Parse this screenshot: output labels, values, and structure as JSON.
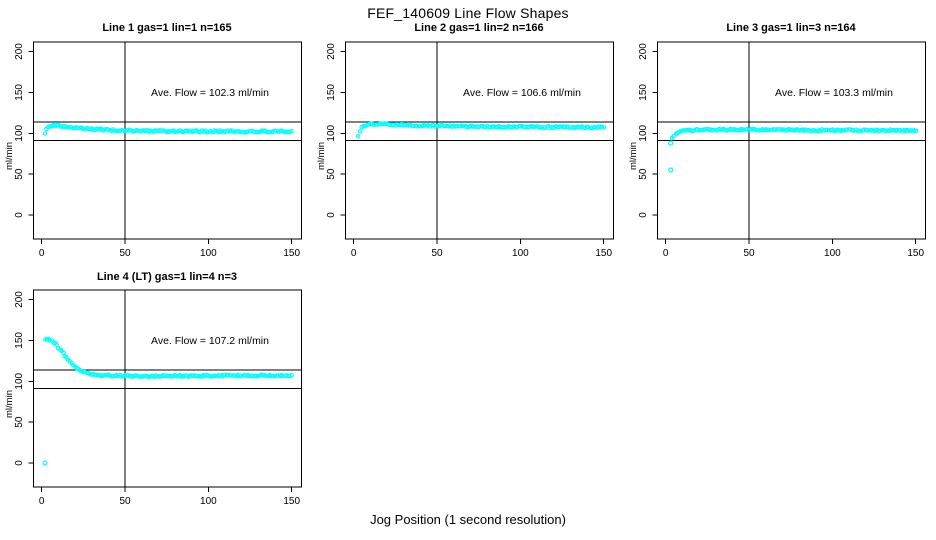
{
  "title": "FEF_140609  Line Flow Shapes",
  "xlabel": "Jog Position (1 second resolution)",
  "colors": {
    "points": "#00FFFF",
    "axis": "#000000",
    "background": "#FFFFFF"
  },
  "chart_data": {
    "type": "scatter",
    "title": "FEF_140609  Line Flow Shapes",
    "xlabel": "Jog Position (1 second resolution)",
    "ylabel": "ml/min",
    "x_ticks": [
      0,
      50,
      100,
      150
    ],
    "y_ticks": [
      0,
      50,
      100,
      150,
      200
    ],
    "xlim": [
      -5,
      155
    ],
    "ylim": [
      -30,
      215
    ],
    "grid": false,
    "legend": "none",
    "marker": "open-circle",
    "ref_line_x": 50,
    "ref_lines_y": [
      114,
      91
    ],
    "panels": [
      {
        "title": "Line 1 gas=1 lin=1 n=165",
        "ylabel": "ml/min",
        "annotation": "Ave. Flow =  102.3  ml/min",
        "ave_flow_ml_min": 102.3,
        "n": 165,
        "points": [
          [
            2,
            100.5
          ],
          [
            3,
            106
          ],
          [
            4,
            108.5
          ],
          [
            5,
            109.3
          ],
          [
            7,
            109.6
          ],
          [
            10,
            109
          ],
          [
            14,
            108.2
          ],
          [
            18,
            107.3
          ],
          [
            22,
            106.4
          ],
          [
            26,
            105.7
          ],
          [
            30,
            105.1
          ],
          [
            35,
            104.5
          ],
          [
            40,
            104
          ],
          [
            45,
            103.6
          ],
          [
            50,
            103.3
          ],
          [
            60,
            103
          ],
          [
            70,
            102.8
          ],
          [
            80,
            102.6
          ],
          [
            90,
            102.5
          ],
          [
            100,
            102.4
          ],
          [
            110,
            102.3
          ],
          [
            125,
            102.2
          ],
          [
            150,
            102.1
          ]
        ],
        "outliers": []
      },
      {
        "title": "Line 2 gas=1 lin=2 n=166",
        "ylabel": "ml/min",
        "annotation": "Ave. Flow =  106.6  ml/min",
        "ave_flow_ml_min": 106.6,
        "n": 166,
        "points": [
          [
            3,
            96.5
          ],
          [
            4,
            103
          ],
          [
            5,
            106.5
          ],
          [
            6,
            108.5
          ],
          [
            8,
            110.3
          ],
          [
            10,
            111
          ],
          [
            14,
            111.2
          ],
          [
            18,
            111
          ],
          [
            22,
            110.7
          ],
          [
            26,
            110.4
          ],
          [
            30,
            110.1
          ],
          [
            35,
            109.8
          ],
          [
            40,
            109.5
          ],
          [
            45,
            109.2
          ],
          [
            50,
            109
          ],
          [
            60,
            108.6
          ],
          [
            70,
            108.3
          ],
          [
            80,
            108.1
          ],
          [
            90,
            107.9
          ],
          [
            100,
            107.7
          ],
          [
            110,
            107.6
          ],
          [
            125,
            107.4
          ],
          [
            150,
            107.2
          ]
        ],
        "outliers": []
      },
      {
        "title": "Line 3 gas=1 lin=3 n=164",
        "ylabel": "ml/min",
        "annotation": "Ave. Flow =  103.3  ml/min",
        "ave_flow_ml_min": 103.3,
        "n": 164,
        "points": [
          [
            4,
            94.5
          ],
          [
            5,
            97.5
          ],
          [
            6,
            99.5
          ],
          [
            8,
            101.5
          ],
          [
            10,
            102.5
          ],
          [
            13,
            103.3
          ],
          [
            16,
            103.8
          ],
          [
            20,
            104.1
          ],
          [
            25,
            104.3
          ],
          [
            35,
            104.3
          ],
          [
            50,
            104.2
          ],
          [
            70,
            104
          ],
          [
            90,
            103.8
          ],
          [
            110,
            103.6
          ],
          [
            130,
            103.4
          ],
          [
            150,
            103.2
          ]
        ],
        "outliers": [
          [
            3,
            88
          ],
          [
            3,
            55
          ]
        ]
      },
      {
        "title": "Line 4 (LT) gas=1 lin=4 n=3",
        "ylabel": "ml/min",
        "annotation": "Ave. Flow =  107.2  ml/min",
        "ave_flow_ml_min": 107.2,
        "n": 3,
        "points": [
          [
            2,
            152
          ],
          [
            4,
            151.5
          ],
          [
            5,
            150.5
          ],
          [
            6,
            149.5
          ],
          [
            7,
            148
          ],
          [
            8,
            146
          ],
          [
            9,
            144
          ],
          [
            10,
            141.5
          ],
          [
            11,
            139
          ],
          [
            12,
            136.5
          ],
          [
            13,
            134
          ],
          [
            14,
            131.5
          ],
          [
            15,
            129
          ],
          [
            16,
            126.5
          ],
          [
            17,
            124
          ],
          [
            18,
            122
          ],
          [
            19,
            120
          ],
          [
            20,
            118
          ],
          [
            21,
            116.4
          ],
          [
            22,
            115
          ],
          [
            23,
            113.7
          ],
          [
            24,
            112.5
          ],
          [
            25,
            111.6
          ],
          [
            26,
            110.8
          ],
          [
            28,
            109.5
          ],
          [
            30,
            108.6
          ],
          [
            32,
            108
          ],
          [
            35,
            107.4
          ],
          [
            38,
            107
          ],
          [
            42,
            106.7
          ],
          [
            46,
            106.5
          ],
          [
            50,
            106.4
          ],
          [
            60,
            106.3
          ],
          [
            70,
            106.3
          ],
          [
            80,
            106.4
          ],
          [
            90,
            106.5
          ],
          [
            100,
            106.6
          ],
          [
            110,
            106.7
          ],
          [
            120,
            106.8
          ],
          [
            135,
            106.9
          ],
          [
            150,
            107
          ]
        ],
        "outliers": [
          [
            2,
            0
          ]
        ]
      }
    ]
  }
}
